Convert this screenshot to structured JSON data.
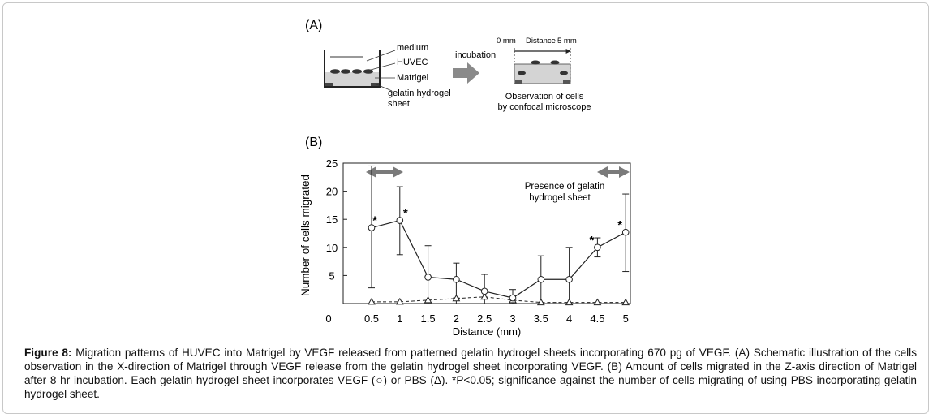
{
  "panel_a": {
    "label": "(A)",
    "well_labels": [
      "medium",
      "HUVEC",
      "Matrigel",
      "gelatin hydrogel",
      "sheet"
    ],
    "arrow_label": "incubation",
    "distance_start": "0 mm",
    "distance_label": "Distance",
    "distance_end": "5 mm",
    "observation_line1": "Observation of cells",
    "observation_line2": "by confocal microscope"
  },
  "chart_data": {
    "type": "line",
    "panel_label": "(B)",
    "xlabel": "Distance (mm)",
    "ylabel": "Number of cells migrated",
    "x_origin_label": "0",
    "x": [
      0.5,
      1,
      1.5,
      2,
      2.5,
      3,
      3.5,
      4,
      4.5,
      5
    ],
    "x_tick_labels": [
      "0.5",
      "1",
      "1.5",
      "2",
      "2.5",
      "3",
      "3.5",
      "4",
      "4.5",
      "5"
    ],
    "ylim": [
      0,
      25
    ],
    "y_ticks": [
      5,
      10,
      15,
      20,
      25
    ],
    "series": [
      {
        "marker": "circle",
        "line_style": "solid",
        "values": [
          13.5,
          14.8,
          4.7,
          4.3,
          2.2,
          1.0,
          4.3,
          4.3,
          10.0,
          12.7
        ],
        "error_upper": [
          24.5,
          20.8,
          10.3,
          7.2,
          5.2,
          2.5,
          8.5,
          10.0,
          11.7,
          19.5
        ],
        "error_lower": [
          2.8,
          8.7,
          0.0,
          1.0,
          0.0,
          0.0,
          0.0,
          0.0,
          8.3,
          5.7
        ],
        "significant": [
          true,
          true,
          false,
          false,
          false,
          false,
          false,
          false,
          true,
          true
        ]
      },
      {
        "marker": "triangle",
        "line_style": "dashed",
        "values": [
          0.3,
          0.3,
          0.6,
          0.9,
          1.2,
          0.6,
          0.2,
          0.2,
          0.2,
          0.2
        ]
      }
    ],
    "annotation_line1": "Presence of gelatin",
    "annotation_line2": "hydrogel sheet",
    "significance_marker": "*"
  },
  "caption": {
    "label": "Figure 8:",
    "text": "Migration patterns of HUVEC into Matrigel by VEGF released from patterned gelatin hydrogel sheets incorporating 670 pg of VEGF. (A) Schematic illustration of the cells observation in the X-direction of Matrigel through VEGF release from the gelatin hydrogel sheet incorporating VEGF. (B) Amount of cells migrated in the Z-axis direction of Matrigel after 8 hr incubation. Each gelatin hydrogel sheet incorporates VEGF (○) or PBS (Δ). *P<0.05; significance against the number of cells migrating of using PBS incorporating gelatin hydrogel sheet."
  }
}
